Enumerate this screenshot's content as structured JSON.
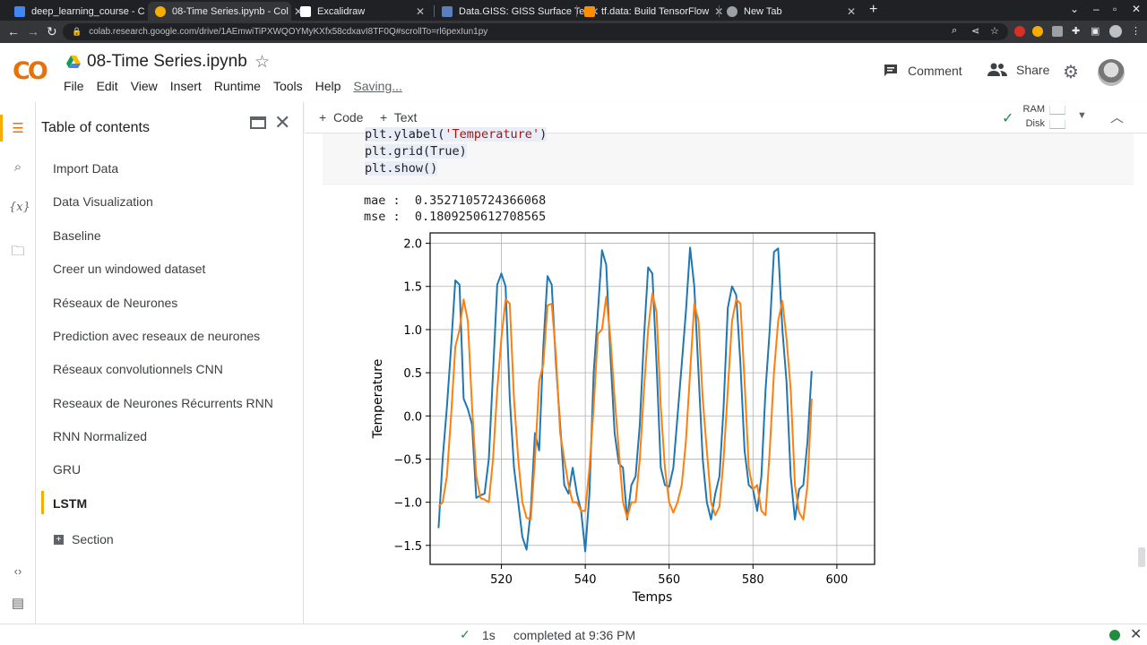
{
  "browser": {
    "tabs": [
      {
        "title": "deep_learning_course - C",
        "favicon_color": "#4285f4"
      },
      {
        "title": "08-Time Series.ipynb - Col",
        "favicon_color": "#f9ab00"
      },
      {
        "title": "Excalidraw",
        "favicon_color": "#ffffff"
      },
      {
        "title": "Data.GISS: GISS Surface Te",
        "favicon_color": "#5a7fc0"
      },
      {
        "title": "tf.data: Build TensorFlow",
        "favicon_color": "#ff8f00"
      },
      {
        "title": "New Tab",
        "favicon_color": "#9aa0a6"
      }
    ],
    "url": "colab.research.google.com/drive/1AEmwiTiPXWQOYMyKXfx58cdxavI8TF0Q#scrollTo=rl6pexIun1py"
  },
  "header": {
    "logo_text": "CO",
    "notebook_title": "08-Time Series.ipynb",
    "menu": [
      "File",
      "Edit",
      "View",
      "Insert",
      "Runtime",
      "Tools",
      "Help"
    ],
    "saving_label": "Saving...",
    "comment_label": "Comment",
    "share_label": "Share"
  },
  "toc": {
    "title": "Table of contents",
    "items": [
      "Import Data",
      "Data Visualization",
      "Baseline",
      "Creer un windowed dataset",
      "Réseaux de Neurones",
      "Prediction avec reseaux de neurones",
      "Réseaux convolutionnels CNN",
      "Reseaux de Neurones Récurrents RNN",
      "RNN Normalized",
      "GRU",
      "LSTM"
    ],
    "active_item": "LSTM",
    "section_label": "Section"
  },
  "toolbar": {
    "code_label": "Code",
    "text_label": "Text",
    "ram_label": "RAM",
    "disk_label": "Disk"
  },
  "cell": {
    "code_partial": "plt.ylabel(",
    "code_partial_string": "'Temperature'",
    "code_partial_end": ")",
    "code_line2": "plt.grid(True)",
    "code_line3": "plt.show()",
    "output_mae": "mae :  0.3527105724366068",
    "output_mse": "mse :  0.1809250612708565"
  },
  "chart_data": {
    "type": "line",
    "xlabel": "Temps",
    "ylabel": "Temperature",
    "xlim": [
      503,
      609
    ],
    "ylim": [
      -1.72,
      2.12
    ],
    "xticks": [
      520,
      540,
      560,
      580,
      600
    ],
    "yticks": [
      -1.5,
      -1.0,
      -0.5,
      0.0,
      0.5,
      1.0,
      1.5,
      2.0
    ],
    "ytick_labels": [
      "−1.5",
      "−1.0",
      "−0.5",
      "0.0",
      "0.5",
      "1.0",
      "1.5",
      "2.0"
    ],
    "grid": true,
    "x_start": 505,
    "series": [
      {
        "color": "#1f77b4",
        "values": [
          -1.3,
          -0.5,
          0.1,
          0.8,
          1.57,
          1.52,
          0.2,
          0.08,
          -0.1,
          -0.95,
          -0.92,
          -0.9,
          -0.5,
          0.5,
          1.52,
          1.65,
          1.5,
          0.2,
          -0.6,
          -1.0,
          -1.4,
          -1.55,
          -1.1,
          -0.2,
          -0.4,
          0.8,
          1.62,
          1.52,
          0.6,
          -0.1,
          -0.8,
          -0.9,
          -0.6,
          -0.9,
          -1.1,
          -1.57,
          -0.9,
          0.5,
          1.2,
          1.92,
          1.75,
          0.7,
          -0.2,
          -0.55,
          -0.6,
          -1.2,
          -0.8,
          -0.7,
          -0.1,
          0.9,
          1.72,
          1.65,
          0.6,
          -0.6,
          -0.8,
          -0.82,
          -0.6,
          0.0,
          0.6,
          1.2,
          1.95,
          1.5,
          0.5,
          -0.5,
          -1.0,
          -1.2,
          -0.9,
          -0.7,
          0.1,
          1.25,
          1.5,
          1.4,
          0.6,
          -0.4,
          -0.8,
          -0.85,
          -1.1,
          -0.7,
          0.3,
          1.0,
          1.9,
          1.94,
          1.0,
          0.4,
          -0.7,
          -1.2,
          -0.85,
          -0.8,
          -0.3,
          0.52
        ]
      },
      {
        "color": "#ff7f0e",
        "values": [
          -1.05,
          -1.0,
          -0.7,
          0.0,
          0.8,
          1.0,
          1.35,
          1.1,
          0.1,
          -0.7,
          -0.95,
          -0.97,
          -1.0,
          -0.5,
          0.3,
          0.9,
          1.35,
          1.3,
          0.2,
          -0.5,
          -1.0,
          -1.18,
          -1.2,
          -0.5,
          0.4,
          0.6,
          1.28,
          1.3,
          0.7,
          -0.2,
          -0.5,
          -0.8,
          -1.0,
          -1.0,
          -1.1,
          -1.1,
          -0.6,
          0.1,
          0.95,
          1.0,
          1.38,
          0.9,
          0.2,
          -0.4,
          -1.0,
          -1.18,
          -1.0,
          -1.0,
          -0.5,
          0.3,
          1.0,
          1.42,
          1.2,
          0.1,
          -0.6,
          -1.0,
          -1.12,
          -1.0,
          -0.8,
          -0.3,
          0.5,
          1.3,
          1.1,
          0.2,
          -0.4,
          -1.0,
          -1.15,
          -1.05,
          -0.5,
          0.3,
          1.1,
          1.35,
          1.3,
          0.4,
          -0.6,
          -0.85,
          -0.8,
          -1.1,
          -1.15,
          -0.4,
          0.5,
          1.1,
          1.33,
          0.9,
          0.3,
          -0.8,
          -1.12,
          -1.2,
          -0.8,
          0.2
        ]
      }
    ]
  },
  "status": {
    "elapsed": "1s",
    "text": "completed at 9:36 PM"
  }
}
